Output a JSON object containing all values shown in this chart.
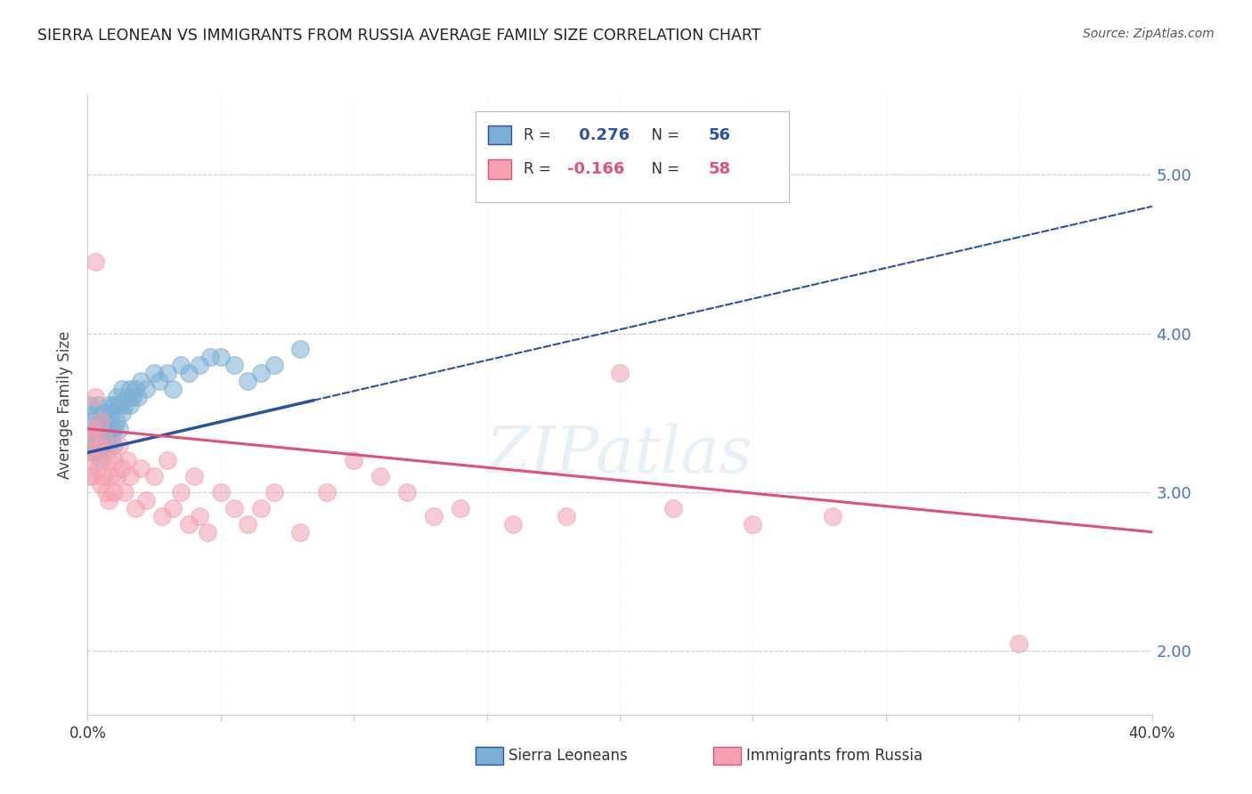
{
  "title": "SIERRA LEONEAN VS IMMIGRANTS FROM RUSSIA AVERAGE FAMILY SIZE CORRELATION CHART",
  "source": "Source: ZipAtlas.com",
  "ylabel": "Average Family Size",
  "right_ytick_color": "#4472c4",
  "xlim": [
    0.0,
    0.4
  ],
  "ylim": [
    1.6,
    5.5
  ],
  "yticks": [
    2.0,
    3.0,
    4.0,
    5.0
  ],
  "xticks": [
    0.0,
    0.05,
    0.1,
    0.15,
    0.2,
    0.25,
    0.3,
    0.35,
    0.4
  ],
  "xtick_labels": [
    "0.0%",
    "",
    "",
    "",
    "",
    "",
    "",
    "",
    "40.0%"
  ],
  "blue_R": 0.276,
  "blue_N": 56,
  "pink_R": -0.166,
  "pink_N": 58,
  "blue_color": "#7bafd4",
  "pink_color": "#f4a0b0",
  "blue_line_color": "#2952a3",
  "pink_line_color": "#e0507a",
  "blue_scatter_x": [
    0.001,
    0.001,
    0.002,
    0.002,
    0.002,
    0.003,
    0.003,
    0.003,
    0.004,
    0.004,
    0.004,
    0.005,
    0.005,
    0.005,
    0.006,
    0.006,
    0.006,
    0.007,
    0.007,
    0.008,
    0.008,
    0.008,
    0.009,
    0.009,
    0.01,
    0.01,
    0.01,
    0.011,
    0.011,
    0.012,
    0.012,
    0.013,
    0.013,
    0.014,
    0.015,
    0.016,
    0.016,
    0.017,
    0.018,
    0.019,
    0.02,
    0.022,
    0.025,
    0.027,
    0.03,
    0.032,
    0.035,
    0.038,
    0.042,
    0.046,
    0.05,
    0.055,
    0.06,
    0.065,
    0.07,
    0.08
  ],
  "blue_scatter_y": [
    3.55,
    3.35,
    3.45,
    3.3,
    3.25,
    3.5,
    3.4,
    3.3,
    3.55,
    3.4,
    3.25,
    3.45,
    3.35,
    3.2,
    3.5,
    3.4,
    3.3,
    3.45,
    3.35,
    3.55,
    3.4,
    3.3,
    3.5,
    3.35,
    3.55,
    3.4,
    3.3,
    3.6,
    3.45,
    3.55,
    3.4,
    3.65,
    3.5,
    3.55,
    3.6,
    3.65,
    3.55,
    3.6,
    3.65,
    3.6,
    3.7,
    3.65,
    3.75,
    3.7,
    3.75,
    3.65,
    3.8,
    3.75,
    3.8,
    3.85,
    3.85,
    3.8,
    3.7,
    3.75,
    3.8,
    3.9
  ],
  "pink_scatter_x": [
    0.001,
    0.001,
    0.001,
    0.002,
    0.002,
    0.002,
    0.003,
    0.003,
    0.004,
    0.004,
    0.005,
    0.005,
    0.006,
    0.006,
    0.007,
    0.007,
    0.008,
    0.008,
    0.009,
    0.01,
    0.01,
    0.011,
    0.012,
    0.013,
    0.014,
    0.015,
    0.016,
    0.018,
    0.02,
    0.022,
    0.025,
    0.028,
    0.03,
    0.032,
    0.035,
    0.038,
    0.04,
    0.042,
    0.045,
    0.05,
    0.055,
    0.06,
    0.065,
    0.07,
    0.08,
    0.09,
    0.1,
    0.11,
    0.12,
    0.13,
    0.14,
    0.16,
    0.18,
    0.2,
    0.22,
    0.25,
    0.28,
    0.35
  ],
  "pink_scatter_y": [
    3.35,
    3.2,
    3.1,
    3.4,
    3.25,
    3.1,
    4.45,
    3.6,
    3.3,
    3.15,
    3.45,
    3.05,
    3.35,
    3.1,
    3.25,
    3.0,
    3.2,
    2.95,
    3.1,
    3.2,
    3.0,
    3.1,
    3.3,
    3.15,
    3.0,
    3.2,
    3.1,
    2.9,
    3.15,
    2.95,
    3.1,
    2.85,
    3.2,
    2.9,
    3.0,
    2.8,
    3.1,
    2.85,
    2.75,
    3.0,
    2.9,
    2.8,
    2.9,
    3.0,
    2.75,
    3.0,
    3.2,
    3.1,
    3.0,
    2.85,
    2.9,
    2.8,
    2.85,
    3.75,
    2.9,
    2.8,
    2.85,
    2.05
  ],
  "blue_trend_start_x": 0.0,
  "blue_trend_solid_end_x": 0.085,
  "blue_trend_end_x": 0.4,
  "blue_trend_y_at_0": 3.25,
  "blue_trend_y_at_40pct": 4.8,
  "pink_trend_y_at_0": 3.4,
  "pink_trend_y_at_40pct": 2.75,
  "background_color": "#ffffff",
  "grid_color": "#cccccc",
  "watermark": "ZIPatlas"
}
